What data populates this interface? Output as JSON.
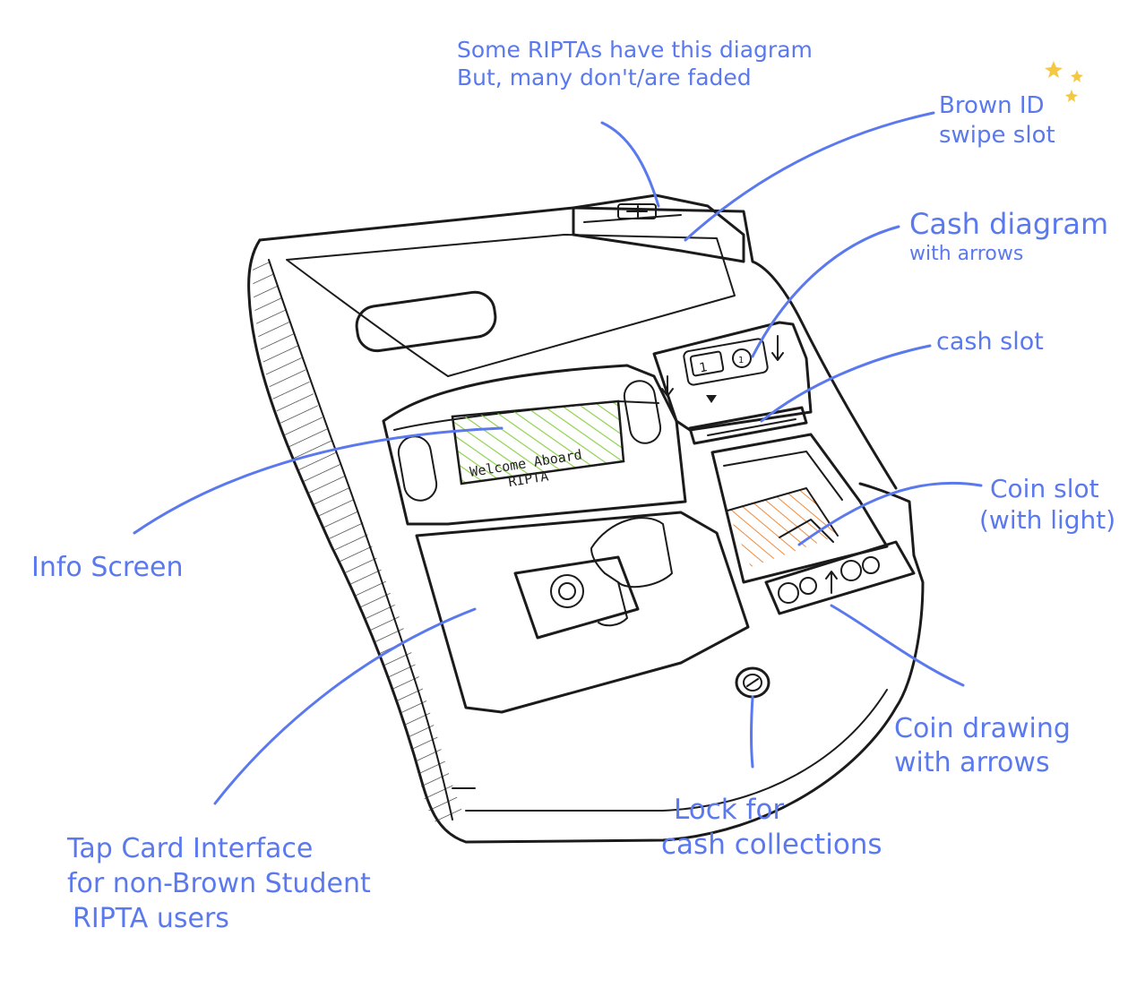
{
  "colors": {
    "annotation": "#5b79ee",
    "ink": "#1b1b1b",
    "screen_fill": "#8fd14f",
    "coin_slot_glow": "#f08a3c",
    "sparkle": "#f5c842"
  },
  "screen": {
    "line1": "Welcome Aboard",
    "line2": "RIPTA"
  },
  "annotations": {
    "top_note": {
      "line1": "Some RIPTAs have this diagram",
      "line2": "But, many don't/are faded"
    },
    "brown_id": {
      "line1": "Brown ID",
      "line2": "swipe slot"
    },
    "cash_diagram": {
      "line1": "Cash diagram",
      "line2": "with arrows"
    },
    "cash_slot": {
      "line1": "cash slot"
    },
    "coin_slot": {
      "line1": "Coin slot",
      "line2": "(with light)"
    },
    "info_screen": {
      "line1": "Info Screen"
    },
    "coin_drawing": {
      "line1": "Coin drawing",
      "line2": "with arrows"
    },
    "lock": {
      "line1": "Lock for",
      "line2": "cash collections"
    },
    "tap_card": {
      "line1": "Tap Card Interface",
      "line2": "for non-Brown Student",
      "line3": "RIPTA users"
    }
  },
  "icons": [
    "sparkle-icon",
    "card-swipe-icon",
    "bill-icon",
    "coin-icon",
    "down-arrow-icon",
    "up-arrow-icon",
    "tap-card-icon",
    "hand-icon",
    "lock-icon"
  ]
}
